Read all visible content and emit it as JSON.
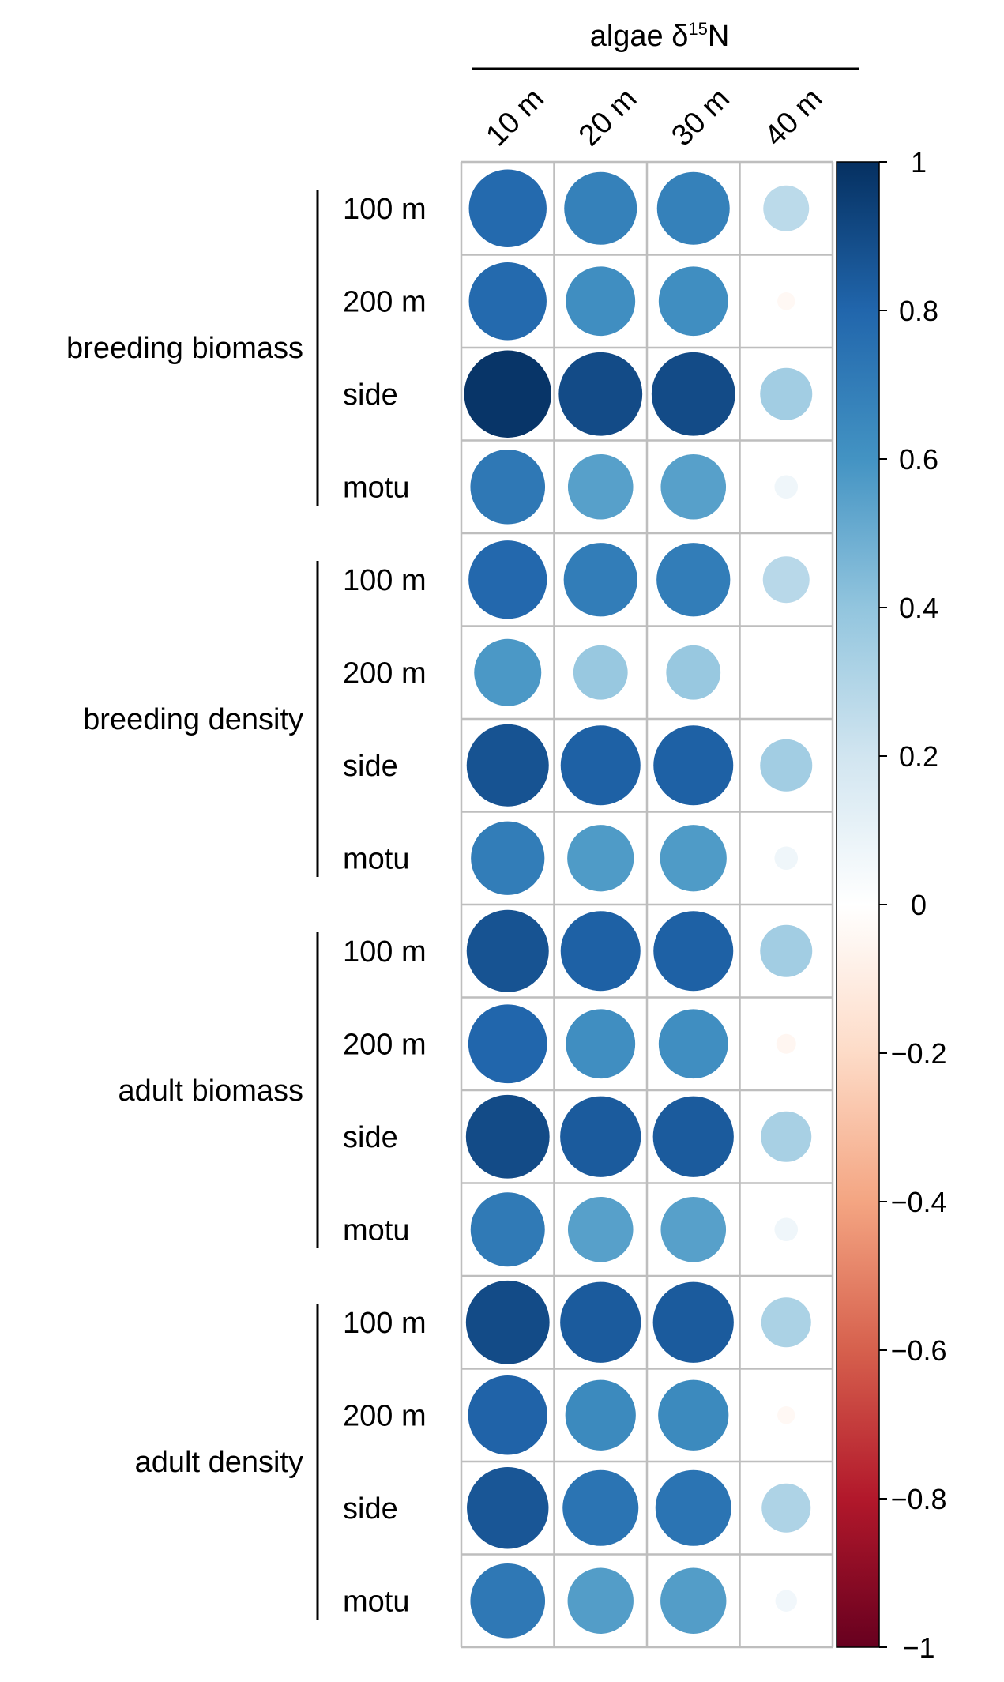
{
  "chart_data": {
    "type": "heatmap",
    "title": "algae δ15N",
    "title_main": "algae δ",
    "title_sup": "15",
    "title_end": "N",
    "columns": [
      "10 m",
      "20 m",
      "30 m",
      "40 m"
    ],
    "groups": [
      {
        "label": "breeding biomass",
        "rows": [
          "100 m",
          "200 m",
          "side",
          "motu"
        ]
      },
      {
        "label": "breeding density",
        "rows": [
          "100 m",
          "200 m",
          "side",
          "motu"
        ]
      },
      {
        "label": "adult biomass",
        "rows": [
          "100 m",
          "200 m",
          "side",
          "motu"
        ]
      },
      {
        "label": "adult density",
        "rows": [
          "100 m",
          "200 m",
          "side",
          "motu"
        ]
      }
    ],
    "values": [
      [
        0.78,
        0.68,
        0.68,
        0.27
      ],
      [
        0.78,
        0.62,
        0.62,
        -0.04
      ],
      [
        0.98,
        0.9,
        0.9,
        0.35
      ],
      [
        0.72,
        0.55,
        0.55,
        0.07
      ],
      [
        0.79,
        0.7,
        0.7,
        0.28
      ],
      [
        0.58,
        0.38,
        0.38,
        0.0
      ],
      [
        0.87,
        0.82,
        0.82,
        0.35
      ],
      [
        0.7,
        0.57,
        0.57,
        0.07
      ],
      [
        0.87,
        0.82,
        0.82,
        0.35
      ],
      [
        0.8,
        0.62,
        0.62,
        -0.05
      ],
      [
        0.9,
        0.84,
        0.84,
        0.33
      ],
      [
        0.71,
        0.55,
        0.55,
        0.07
      ],
      [
        0.9,
        0.84,
        0.84,
        0.32
      ],
      [
        0.81,
        0.64,
        0.64,
        -0.04
      ],
      [
        0.86,
        0.74,
        0.74,
        0.31
      ],
      [
        0.72,
        0.56,
        0.56,
        0.06
      ]
    ],
    "colorbar": {
      "range": [
        -1,
        1
      ],
      "ticks": [
        "1",
        "0.8",
        "0.6",
        "0.4",
        "0.2",
        "0",
        "−0.2",
        "−0.4",
        "−0.6",
        "−0.8",
        "−1"
      ]
    },
    "colormap": [
      "#67001f",
      "#b2182b",
      "#d6604d",
      "#f4a582",
      "#fddbc7",
      "#ffffff",
      "#d1e5f0",
      "#92c5de",
      "#4393c3",
      "#2166ac",
      "#053061"
    ]
  }
}
